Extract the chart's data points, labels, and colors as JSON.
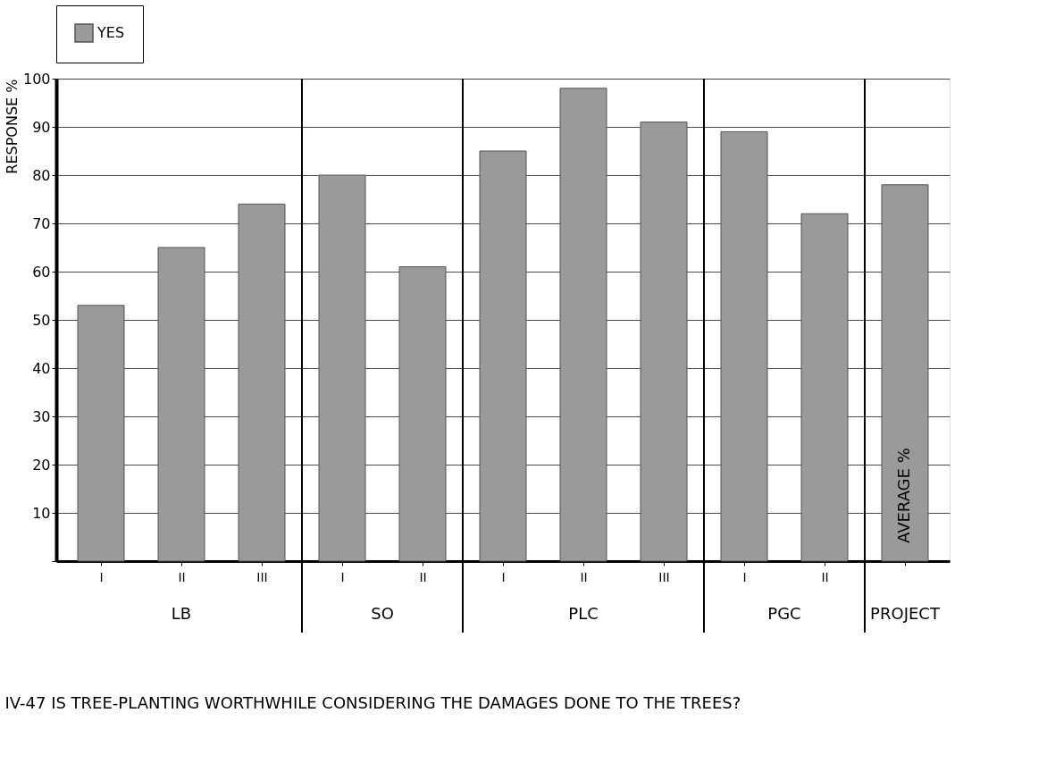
{
  "chart_data": {
    "type": "bar",
    "title": "IV-47 IS TREE-PLANTING WORTHWHILE CONSIDERING THE DAMAGES DONE TO THE TREES?",
    "ylabel": "RESPONSE %",
    "categories": [
      "I",
      "II",
      "III",
      "I",
      "II",
      "I",
      "II",
      "III",
      "I",
      "II",
      null
    ],
    "series": [
      {
        "name": "YES",
        "color": "#9a9a9a",
        "values": [
          53,
          65,
          74,
          80,
          61,
          85,
          98,
          91,
          89,
          72,
          78
        ]
      }
    ],
    "annotations": [
      "LB",
      "SO",
      "PLC",
      "PGC",
      "PROJECT",
      "AVERAGE %"
    ],
    "ylim": [
      0,
      100
    ],
    "yticks": [
      {
        "value": 0,
        "label": null
      },
      10,
      20,
      30,
      40,
      50,
      60,
      70,
      80,
      90,
      100
    ],
    "grid": "y",
    "legend": "top"
  }
}
